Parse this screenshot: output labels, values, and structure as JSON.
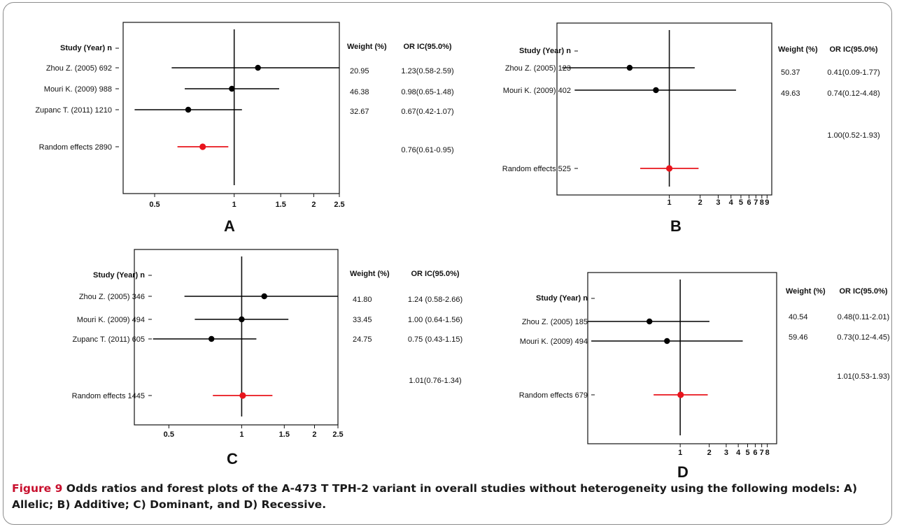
{
  "chart_data": [
    {
      "type": "forest",
      "panel_label": "A",
      "headers": {
        "study": "Study (Year) n",
        "weight": "Weight (%)",
        "or": "OR IC(95.0%)"
      },
      "x_scale": "log",
      "xlim": [
        0.38,
        2.5
      ],
      "ticks": [
        0.5,
        1,
        1.5,
        2,
        2.5
      ],
      "tick_labels": [
        "0.5",
        "1",
        "1.5",
        "2",
        "2.5"
      ],
      "studies": [
        {
          "label": "Zhou Z. (2005) 692",
          "or": 1.23,
          "ci": [
            0.58,
            2.59
          ],
          "weight": "20.95",
          "or_text": "1.23(0.58-2.59)"
        },
        {
          "label": "Mouri K. (2009) 988",
          "or": 0.98,
          "ci": [
            0.65,
            1.48
          ],
          "weight": "46.38",
          "or_text": "0.98(0.65-1.48)"
        },
        {
          "label": "Zupanc T. (2011) 1210",
          "or": 0.67,
          "ci": [
            0.42,
            1.07
          ],
          "weight": "32.67",
          "or_text": "0.67(0.42-1.07)"
        }
      ],
      "pooled": {
        "label": "Random effects 2890",
        "or": 0.76,
        "ci": [
          0.61,
          0.95
        ],
        "or_text": "0.76(0.61-0.95)"
      },
      "colors": {
        "study": "#000000",
        "pooled": "#e8141c"
      }
    },
    {
      "type": "forest",
      "panel_label": "B",
      "headers": {
        "study": "Study (Year) n",
        "weight": "Weight (%)",
        "or": "OR IC(95.0%)"
      },
      "x_scale": "log",
      "xlim": [
        0.08,
        10
      ],
      "ticks": [
        1,
        2,
        3,
        4,
        5,
        6,
        7,
        8,
        9
      ],
      "tick_labels": [
        "1",
        "2",
        "3",
        "4",
        "5",
        "6",
        "7",
        "8",
        "9"
      ],
      "studies": [
        {
          "label": "Zhou Z. (2005) 123",
          "or": 0.41,
          "ci": [
            0.09,
            1.77
          ],
          "weight": "50.37",
          "or_text": "0.41(0.09-1.77)"
        },
        {
          "label": "Mouri K. (2009) 402",
          "or": 0.74,
          "ci": [
            0.12,
            4.48
          ],
          "weight": "49.63",
          "or_text": "0.74(0.12-4.48)"
        }
      ],
      "pooled": {
        "label": "Random effects 525",
        "or": 1.0,
        "ci": [
          0.52,
          1.93
        ],
        "or_text": "1.00(0.52-1.93)"
      },
      "colors": {
        "study": "#000000",
        "pooled": "#e8141c"
      }
    },
    {
      "type": "forest",
      "panel_label": "C",
      "headers": {
        "study": "Study (Year) n",
        "weight": "Weight (%)",
        "or": "OR IC(95.0%)"
      },
      "x_scale": "log",
      "xlim": [
        0.36,
        2.5
      ],
      "ticks": [
        0.5,
        1,
        1.5,
        2,
        2.5
      ],
      "tick_labels": [
        "0.5",
        "1",
        "1.5",
        "2",
        "2.5"
      ],
      "studies": [
        {
          "label": "Zhou Z. (2005) 346",
          "or": 1.24,
          "ci": [
            0.58,
            2.66
          ],
          "weight": "41.80",
          "or_text": "1.24 (0.58-2.66)"
        },
        {
          "label": "Mouri K. (2009) 494",
          "or": 1.0,
          "ci": [
            0.64,
            1.56
          ],
          "weight": "33.45",
          "or_text": "1.00 (0.64-1.56)"
        },
        {
          "label": "Zupanc T. (2011) 605",
          "or": 0.75,
          "ci": [
            0.43,
            1.15
          ],
          "weight": "24.75",
          "or_text": "0.75 (0.43-1.15)"
        }
      ],
      "pooled": {
        "label": "Random effects 1445",
        "or": 1.01,
        "ci": [
          0.76,
          1.34
        ],
        "or_text": "1.01(0.76-1.34)"
      },
      "colors": {
        "study": "#000000",
        "pooled": "#e8141c"
      }
    },
    {
      "type": "forest",
      "panel_label": "D",
      "headers": {
        "study": "Study (Year) n",
        "weight": "Weight (%)",
        "or": "OR IC(95.0%)"
      },
      "x_scale": "log",
      "xlim": [
        0.11,
        10
      ],
      "ticks": [
        1,
        2,
        3,
        4,
        5,
        6,
        7,
        8
      ],
      "tick_labels": [
        "1",
        "2",
        "3",
        "4",
        "5",
        "6",
        "7",
        "8"
      ],
      "studies": [
        {
          "label": "Zhou Z. (2005) 185",
          "or": 0.48,
          "ci": [
            0.11,
            2.01
          ],
          "weight": "40.54",
          "or_text": "0.48(0.11-2.01)"
        },
        {
          "label": "Mouri K. (2009) 494",
          "or": 0.73,
          "ci": [
            0.12,
            4.45
          ],
          "weight": "59.46",
          "or_text": "0.73(0.12-4.45)"
        }
      ],
      "pooled": {
        "label": "Random effects 679",
        "or": 1.01,
        "ci": [
          0.53,
          1.93
        ],
        "or_text": "1.01(0.53-1.93)"
      },
      "colors": {
        "study": "#000000",
        "pooled": "#e8141c"
      }
    }
  ],
  "caption": {
    "label": "Figure 9",
    "text": "Odds ratios and forest plots of the A-473 T TPH-2 variant in overall studies without heterogeneity using the following models: A) Allelic; B) Additive; C) Dominant, and D) Recessive."
  },
  "colors": {
    "caption_label": "#c8102e",
    "frame": "#8c8c8c"
  }
}
